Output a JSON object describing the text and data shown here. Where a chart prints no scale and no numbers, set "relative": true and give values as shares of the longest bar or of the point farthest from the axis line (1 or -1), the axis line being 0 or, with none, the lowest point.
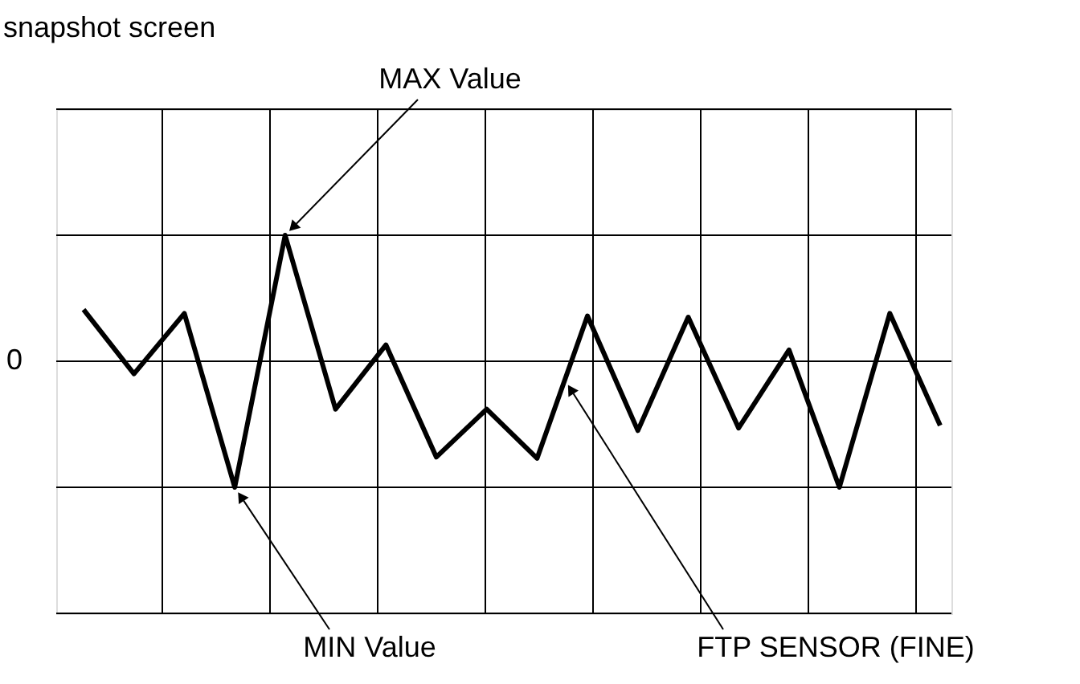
{
  "chart_data": {
    "type": "line",
    "title": "snapshot screen",
    "relative": true,
    "categories": [
      null,
      null,
      null,
      null,
      null,
      null,
      null,
      null,
      null,
      null,
      null,
      null,
      null,
      null,
      null,
      null,
      null,
      null
    ],
    "series": [
      {
        "color": "#000000",
        "values": [
          0.41,
          -0.1,
          0.38,
          -1,
          1,
          -0.38,
          0.13,
          -0.76,
          -0.38,
          -0.77,
          0.36,
          -0.55,
          0.35,
          -0.53,
          0.09,
          -1,
          0.38,
          -0.51
        ]
      }
    ],
    "grid": true,
    "marker": "none",
    "line_style": "solid",
    "tick_labels": false,
    "annotations": [
      "0",
      "MAX Value",
      "MIN Value",
      "FTP SENSOR (FINE)"
    ]
  }
}
